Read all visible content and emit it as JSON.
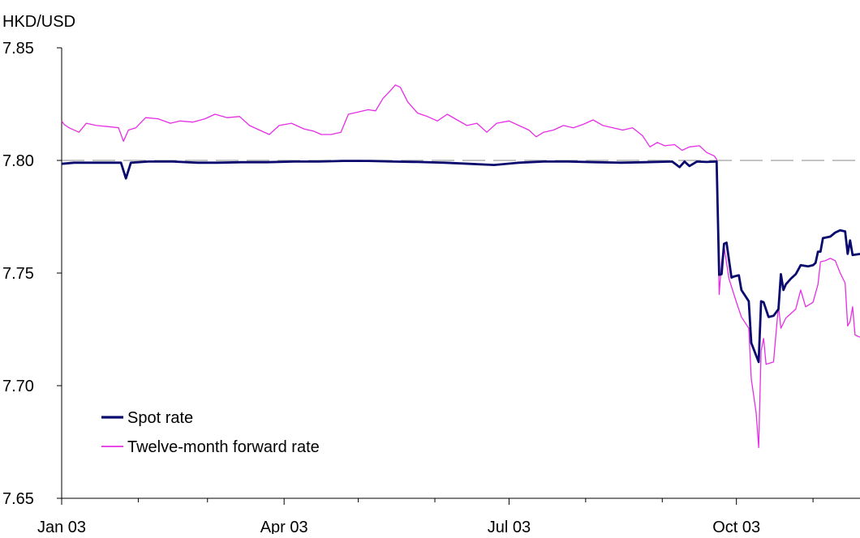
{
  "chart_data": {
    "type": "line",
    "y_unit_label": "HKD/USD",
    "ylim": [
      7.65,
      7.85
    ],
    "y_ticks": [
      "7.85",
      "7.80",
      "7.75",
      "7.70",
      "7.65"
    ],
    "x_ticks": [
      "Jan 03",
      "Apr 03",
      "Jul 03",
      "Oct 03"
    ],
    "x_range": [
      "2003-01-01",
      "2003-11-20"
    ],
    "reference_line": {
      "y": 7.8,
      "style": "dashed",
      "color": "#b0b0b0"
    },
    "legend_position": "bottom-left",
    "series": [
      {
        "name": "Spot rate",
        "color": "#0a0a6e",
        "values": [
          [
            "2003-01-01",
            7.7985
          ],
          [
            "2003-01-06",
            7.799
          ],
          [
            "2003-01-13",
            7.799
          ],
          [
            "2003-01-20",
            7.799
          ],
          [
            "2003-01-25",
            7.799
          ],
          [
            "2003-01-27",
            7.792
          ],
          [
            "2003-01-29",
            7.799
          ],
          [
            "2003-02-05",
            7.7995
          ],
          [
            "2003-02-15",
            7.7995
          ],
          [
            "2003-02-25",
            7.799
          ],
          [
            "2003-03-05",
            7.799
          ],
          [
            "2003-03-15",
            7.7992
          ],
          [
            "2003-03-25",
            7.7992
          ],
          [
            "2003-04-05",
            7.7995
          ],
          [
            "2003-04-15",
            7.7995
          ],
          [
            "2003-04-25",
            7.7998
          ],
          [
            "2003-05-05",
            7.7998
          ],
          [
            "2003-05-15",
            7.7995
          ],
          [
            "2003-05-25",
            7.7993
          ],
          [
            "2003-06-05",
            7.799
          ],
          [
            "2003-06-15",
            7.7985
          ],
          [
            "2003-06-25",
            7.798
          ],
          [
            "2003-07-05",
            7.799
          ],
          [
            "2003-07-15",
            7.7995
          ],
          [
            "2003-07-25",
            7.7995
          ],
          [
            "2003-08-05",
            7.7992
          ],
          [
            "2003-08-15",
            7.799
          ],
          [
            "2003-08-25",
            7.7992
          ],
          [
            "2003-09-05",
            7.7995
          ],
          [
            "2003-09-08",
            7.797
          ],
          [
            "2003-09-10",
            7.7995
          ],
          [
            "2003-09-12",
            7.7975
          ],
          [
            "2003-09-15",
            7.7995
          ],
          [
            "2003-09-19",
            7.7993
          ],
          [
            "2003-09-23",
            7.7995
          ],
          [
            "2003-09-24",
            7.7492
          ],
          [
            "2003-09-25",
            7.7495
          ],
          [
            "2003-09-26",
            7.763
          ],
          [
            "2003-09-27",
            7.7635
          ],
          [
            "2003-09-29",
            7.748
          ],
          [
            "2003-09-30",
            7.7485
          ],
          [
            "2003-10-02",
            7.749
          ],
          [
            "2003-10-03",
            7.7425
          ],
          [
            "2003-10-06",
            7.7375
          ],
          [
            "2003-10-07",
            7.719
          ],
          [
            "2003-10-10",
            7.7105
          ],
          [
            "2003-10-11",
            7.7375
          ],
          [
            "2003-10-12",
            7.737
          ],
          [
            "2003-10-14",
            7.7305
          ],
          [
            "2003-10-16",
            7.731
          ],
          [
            "2003-10-18",
            7.734
          ],
          [
            "2003-10-19",
            7.7495
          ],
          [
            "2003-10-20",
            7.7425
          ],
          [
            "2003-10-21",
            7.745
          ],
          [
            "2003-10-23",
            7.7475
          ],
          [
            "2003-10-25",
            7.7495
          ],
          [
            "2003-10-27",
            7.7535
          ],
          [
            "2003-10-30",
            7.753
          ],
          [
            "2003-11-01",
            7.7535
          ],
          [
            "2003-11-02",
            7.7545
          ],
          [
            "2003-11-03",
            7.7595
          ],
          [
            "2003-11-04",
            7.7595
          ],
          [
            "2003-11-05",
            7.7655
          ],
          [
            "2003-11-08",
            7.7662
          ],
          [
            "2003-11-10",
            7.768
          ],
          [
            "2003-11-12",
            7.769
          ],
          [
            "2003-11-14",
            7.7685
          ],
          [
            "2003-11-15",
            7.7585
          ],
          [
            "2003-11-16",
            7.7645
          ],
          [
            "2003-11-17",
            7.758
          ],
          [
            "2003-11-20",
            7.7585
          ]
        ]
      },
      {
        "name": "Twelve-month forward rate",
        "color": "#e62ee6",
        "values": [
          [
            "2003-01-01",
            7.8175
          ],
          [
            "2003-01-02",
            7.816
          ],
          [
            "2003-01-04",
            7.8145
          ],
          [
            "2003-01-08",
            7.8125
          ],
          [
            "2003-01-11",
            7.8165
          ],
          [
            "2003-01-15",
            7.8155
          ],
          [
            "2003-01-20",
            7.815
          ],
          [
            "2003-01-24",
            7.8145
          ],
          [
            "2003-01-26",
            7.8085
          ],
          [
            "2003-01-28",
            7.8135
          ],
          [
            "2003-01-31",
            7.8145
          ],
          [
            "2003-02-04",
            7.819
          ],
          [
            "2003-02-09",
            7.8185
          ],
          [
            "2003-02-14",
            7.8165
          ],
          [
            "2003-02-18",
            7.8175
          ],
          [
            "2003-02-23",
            7.817
          ],
          [
            "2003-02-28",
            7.8185
          ],
          [
            "2003-03-04",
            7.8205
          ],
          [
            "2003-03-09",
            7.819
          ],
          [
            "2003-03-14",
            7.8195
          ],
          [
            "2003-03-18",
            7.8155
          ],
          [
            "2003-03-22",
            7.8135
          ],
          [
            "2003-03-26",
            7.8115
          ],
          [
            "2003-03-30",
            7.8155
          ],
          [
            "2003-04-04",
            7.8165
          ],
          [
            "2003-04-09",
            7.814
          ],
          [
            "2003-04-13",
            7.813
          ],
          [
            "2003-04-16",
            7.8115
          ],
          [
            "2003-04-20",
            7.8115
          ],
          [
            "2003-04-24",
            7.8125
          ],
          [
            "2003-04-27",
            7.8205
          ],
          [
            "2003-05-01",
            7.8215
          ],
          [
            "2003-05-05",
            7.8225
          ],
          [
            "2003-05-08",
            7.822
          ],
          [
            "2003-05-11",
            7.8275
          ],
          [
            "2003-05-14",
            7.831
          ],
          [
            "2003-05-16",
            7.8335
          ],
          [
            "2003-05-18",
            7.8325
          ],
          [
            "2003-05-21",
            7.826
          ],
          [
            "2003-05-25",
            7.821
          ],
          [
            "2003-05-29",
            7.8195
          ],
          [
            "2003-06-02",
            7.8175
          ],
          [
            "2003-06-06",
            7.8205
          ],
          [
            "2003-06-10",
            7.818
          ],
          [
            "2003-06-14",
            7.8155
          ],
          [
            "2003-06-18",
            7.8165
          ],
          [
            "2003-06-22",
            7.8125
          ],
          [
            "2003-06-26",
            7.8165
          ],
          [
            "2003-07-01",
            7.8175
          ],
          [
            "2003-07-05",
            7.8155
          ],
          [
            "2003-07-09",
            7.8135
          ],
          [
            "2003-07-12",
            7.8105
          ],
          [
            "2003-07-15",
            7.8125
          ],
          [
            "2003-07-19",
            7.8135
          ],
          [
            "2003-07-23",
            7.8155
          ],
          [
            "2003-07-27",
            7.8145
          ],
          [
            "2003-07-31",
            7.816
          ],
          [
            "2003-08-04",
            7.818
          ],
          [
            "2003-08-08",
            7.8155
          ],
          [
            "2003-08-12",
            7.8145
          ],
          [
            "2003-08-16",
            7.8135
          ],
          [
            "2003-08-20",
            7.8145
          ],
          [
            "2003-08-24",
            7.811
          ],
          [
            "2003-08-27",
            7.806
          ],
          [
            "2003-08-30",
            7.808
          ],
          [
            "2003-09-02",
            7.8065
          ],
          [
            "2003-09-06",
            7.807
          ],
          [
            "2003-09-09",
            7.8045
          ],
          [
            "2003-09-12",
            7.806
          ],
          [
            "2003-09-16",
            7.8065
          ],
          [
            "2003-09-19",
            7.8035
          ],
          [
            "2003-09-22",
            7.802
          ],
          [
            "2003-09-23",
            7.8005
          ],
          [
            "2003-09-24",
            7.7405
          ],
          [
            "2003-09-25",
            7.755
          ],
          [
            "2003-09-26",
            7.762
          ],
          [
            "2003-09-28",
            7.7475
          ],
          [
            "2003-10-01",
            7.737
          ],
          [
            "2003-10-03",
            7.7305
          ],
          [
            "2003-10-06",
            7.7255
          ],
          [
            "2003-10-07",
            7.703
          ],
          [
            "2003-10-09",
            7.688
          ],
          [
            "2003-10-10",
            7.6725
          ],
          [
            "2003-10-11",
            7.7155
          ],
          [
            "2003-10-12",
            7.721
          ],
          [
            "2003-10-13",
            7.7095
          ],
          [
            "2003-10-16",
            7.7105
          ],
          [
            "2003-10-18",
            7.7355
          ],
          [
            "2003-10-19",
            7.7255
          ],
          [
            "2003-10-21",
            7.73
          ],
          [
            "2003-10-25",
            7.734
          ],
          [
            "2003-10-27",
            7.7425
          ],
          [
            "2003-10-29",
            7.735
          ],
          [
            "2003-11-01",
            7.737
          ],
          [
            "2003-11-03",
            7.745
          ],
          [
            "2003-11-04",
            7.755
          ],
          [
            "2003-11-06",
            7.7555
          ],
          [
            "2003-11-08",
            7.7565
          ],
          [
            "2003-11-10",
            7.7555
          ],
          [
            "2003-11-12",
            7.75
          ],
          [
            "2003-11-14",
            7.7455
          ],
          [
            "2003-11-15",
            7.7265
          ],
          [
            "2003-11-16",
            7.7285
          ],
          [
            "2003-11-17",
            7.735
          ],
          [
            "2003-11-18",
            7.7225
          ],
          [
            "2003-11-20",
            7.7215
          ]
        ]
      }
    ]
  }
}
